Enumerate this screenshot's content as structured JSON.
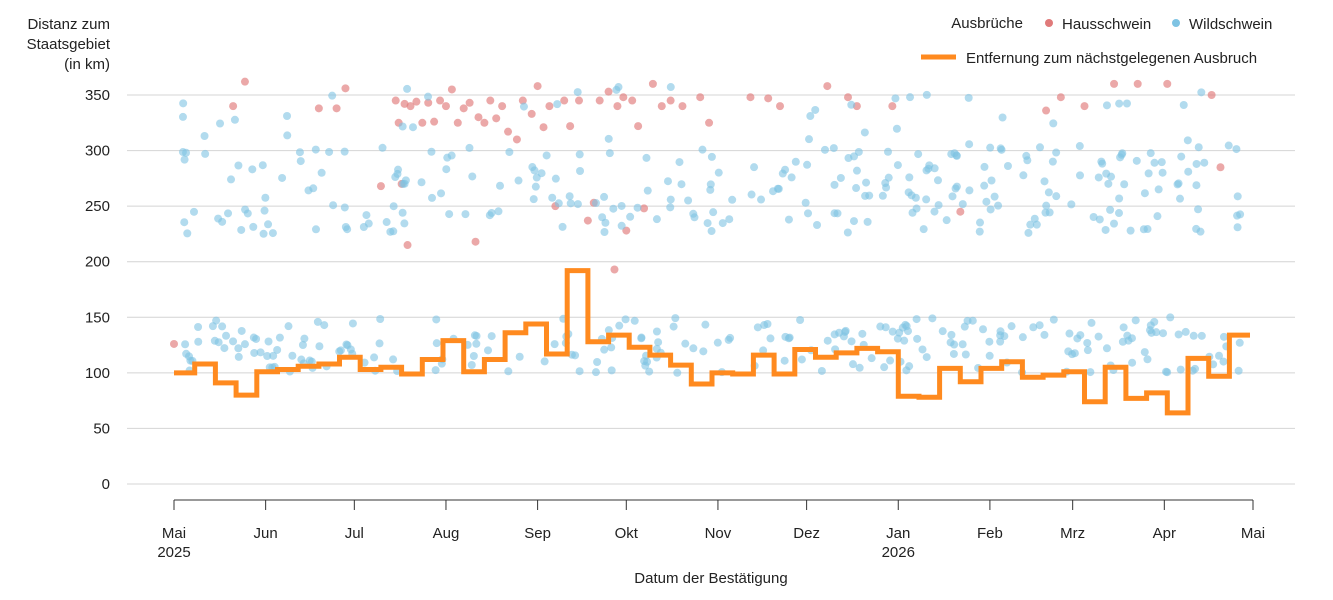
{
  "chart_data": {
    "type": "scatter",
    "ylabel": [
      "Distanz zum",
      "Staatsgebiet",
      "(in km)"
    ],
    "xlabel": "Datum der Bestätigung",
    "ylim": [
      0,
      350
    ],
    "y_ticks": [
      0,
      50,
      100,
      150,
      200,
      250,
      300,
      350
    ],
    "x_ticks": [
      {
        "date": "2025-05-01",
        "label": "Mai",
        "year": "2025"
      },
      {
        "date": "2025-06-01",
        "label": "Jun",
        "year": ""
      },
      {
        "date": "2025-07-01",
        "label": "Jul",
        "year": ""
      },
      {
        "date": "2025-08-01",
        "label": "Aug",
        "year": ""
      },
      {
        "date": "2025-09-01",
        "label": "Sep",
        "year": ""
      },
      {
        "date": "2025-10-01",
        "label": "Okt",
        "year": ""
      },
      {
        "date": "2025-11-01",
        "label": "Nov",
        "year": ""
      },
      {
        "date": "2025-12-01",
        "label": "Dez",
        "year": ""
      },
      {
        "date": "2026-01-01",
        "label": "Jan",
        "year": "2026"
      },
      {
        "date": "2026-02-01",
        "label": "Feb",
        "year": ""
      },
      {
        "date": "2026-03-01",
        "label": "Mrz",
        "year": ""
      },
      {
        "date": "2026-04-01",
        "label": "Apr",
        "year": ""
      },
      {
        "date": "2026-05-01",
        "label": "Mai",
        "year": ""
      }
    ],
    "grid": "horizontal",
    "legend": {
      "placement": "top-right",
      "title": "Ausbrüche",
      "scatter_items": [
        {
          "name": "Hausschwein",
          "color": "#e07a7a"
        },
        {
          "name": "Wildschwein",
          "color": "#7ec3e3"
        }
      ],
      "line_item": {
        "name": "Entfernung zum nächstgelegenen Ausbruch",
        "color": "#ff8a1f"
      }
    },
    "series": [
      {
        "name": "Hausschwein",
        "type": "scatter",
        "color": "#e07a7a",
        "points": [
          [
            "2025-05-01",
            126
          ],
          [
            "2025-05-21",
            340
          ],
          [
            "2025-05-25",
            362
          ],
          [
            "2025-06-19",
            338
          ],
          [
            "2025-06-25",
            338
          ],
          [
            "2025-06-28",
            356
          ],
          [
            "2025-07-10",
            268
          ],
          [
            "2025-07-15",
            345
          ],
          [
            "2025-07-16",
            325
          ],
          [
            "2025-07-17",
            270
          ],
          [
            "2025-07-18",
            342
          ],
          [
            "2025-07-19",
            215
          ],
          [
            "2025-07-20",
            340
          ],
          [
            "2025-07-22",
            344
          ],
          [
            "2025-07-24",
            325
          ],
          [
            "2025-07-26",
            343
          ],
          [
            "2025-07-28",
            326
          ],
          [
            "2025-07-30",
            345
          ],
          [
            "2025-08-01",
            340
          ],
          [
            "2025-08-03",
            355
          ],
          [
            "2025-08-05",
            325
          ],
          [
            "2025-08-07",
            338
          ],
          [
            "2025-08-09",
            343
          ],
          [
            "2025-08-11",
            218
          ],
          [
            "2025-08-12",
            330
          ],
          [
            "2025-08-14",
            325
          ],
          [
            "2025-08-16",
            345
          ],
          [
            "2025-08-18",
            329
          ],
          [
            "2025-08-20",
            340
          ],
          [
            "2025-08-22",
            317
          ],
          [
            "2025-08-25",
            310
          ],
          [
            "2025-08-27",
            345
          ],
          [
            "2025-08-30",
            333
          ],
          [
            "2025-09-01",
            358
          ],
          [
            "2025-09-03",
            321
          ],
          [
            "2025-09-05",
            340
          ],
          [
            "2025-09-07",
            250
          ],
          [
            "2025-09-10",
            345
          ],
          [
            "2025-09-12",
            322
          ],
          [
            "2025-09-15",
            345
          ],
          [
            "2025-09-18",
            237
          ],
          [
            "2025-09-20",
            253
          ],
          [
            "2025-09-22",
            345
          ],
          [
            "2025-09-25",
            353
          ],
          [
            "2025-09-27",
            193
          ],
          [
            "2025-09-28",
            340
          ],
          [
            "2025-09-30",
            348
          ],
          [
            "2025-10-01",
            228
          ],
          [
            "2025-10-03",
            345
          ],
          [
            "2025-10-05",
            322
          ],
          [
            "2025-10-07",
            248
          ],
          [
            "2025-10-10",
            360
          ],
          [
            "2025-10-13",
            340
          ],
          [
            "2025-10-16",
            345
          ],
          [
            "2025-10-20",
            340
          ],
          [
            "2025-10-26",
            348
          ],
          [
            "2025-10-29",
            325
          ],
          [
            "2025-11-12",
            348
          ],
          [
            "2025-11-18",
            347
          ],
          [
            "2025-11-22",
            340
          ],
          [
            "2025-12-08",
            358
          ],
          [
            "2025-12-15",
            348
          ],
          [
            "2025-12-18",
            340
          ],
          [
            "2025-12-30",
            340
          ],
          [
            "2026-01-22",
            245
          ],
          [
            "2026-02-20",
            336
          ],
          [
            "2026-02-25",
            348
          ],
          [
            "2026-03-05",
            340
          ],
          [
            "2026-03-15",
            360
          ],
          [
            "2026-03-23",
            360
          ],
          [
            "2026-04-02",
            360
          ],
          [
            "2026-04-17",
            350
          ],
          [
            "2026-04-20",
            285
          ]
        ]
      },
      {
        "name": "Wildschwein",
        "type": "scatter",
        "color": "#7ec3e3",
        "clusters": [
          {
            "y": [
              225,
              305
            ],
            "count": 260
          },
          {
            "y": [
              100,
              150
            ],
            "count": 240
          },
          {
            "y": [
              300,
              358
            ],
            "count": 40
          }
        ]
      },
      {
        "name": "Entfernung zum nächstgelegenen Ausbruch",
        "type": "step",
        "color": "#ff8a1f",
        "points": [
          [
            "2025-05-01",
            100
          ],
          [
            "2025-05-08",
            100
          ],
          [
            "2025-05-08",
            108
          ],
          [
            "2025-05-15",
            108
          ],
          [
            "2025-05-15",
            91
          ],
          [
            "2025-05-22",
            91
          ],
          [
            "2025-05-22",
            80
          ],
          [
            "2025-05-29",
            80
          ],
          [
            "2025-05-29",
            101
          ],
          [
            "2025-06-05",
            101
          ],
          [
            "2025-06-05",
            103
          ],
          [
            "2025-06-12",
            103
          ],
          [
            "2025-06-12",
            106
          ],
          [
            "2025-06-19",
            106
          ],
          [
            "2025-06-19",
            108
          ],
          [
            "2025-06-26",
            108
          ],
          [
            "2025-06-26",
            114
          ],
          [
            "2025-07-03",
            114
          ],
          [
            "2025-07-03",
            103
          ],
          [
            "2025-07-10",
            103
          ],
          [
            "2025-07-10",
            105
          ],
          [
            "2025-07-17",
            105
          ],
          [
            "2025-07-17",
            99
          ],
          [
            "2025-07-24",
            99
          ],
          [
            "2025-07-24",
            112
          ],
          [
            "2025-07-31",
            112
          ],
          [
            "2025-07-31",
            129
          ],
          [
            "2025-08-07",
            129
          ],
          [
            "2025-08-07",
            101
          ],
          [
            "2025-08-14",
            101
          ],
          [
            "2025-08-14",
            112
          ],
          [
            "2025-08-21",
            112
          ],
          [
            "2025-08-21",
            136
          ],
          [
            "2025-08-28",
            136
          ],
          [
            "2025-08-28",
            144
          ],
          [
            "2025-09-04",
            144
          ],
          [
            "2025-09-04",
            117
          ],
          [
            "2025-09-11",
            117
          ],
          [
            "2025-09-11",
            192
          ],
          [
            "2025-09-18",
            192
          ],
          [
            "2025-09-18",
            128
          ],
          [
            "2025-09-25",
            128
          ],
          [
            "2025-09-25",
            134
          ],
          [
            "2025-10-02",
            134
          ],
          [
            "2025-10-02",
            123
          ],
          [
            "2025-10-09",
            123
          ],
          [
            "2025-10-09",
            116
          ],
          [
            "2025-10-16",
            116
          ],
          [
            "2025-10-16",
            107
          ],
          [
            "2025-10-23",
            107
          ],
          [
            "2025-10-23",
            90
          ],
          [
            "2025-10-30",
            90
          ],
          [
            "2025-10-30",
            100
          ],
          [
            "2025-11-06",
            100
          ],
          [
            "2025-11-06",
            99
          ],
          [
            "2025-11-13",
            99
          ],
          [
            "2025-11-13",
            116
          ],
          [
            "2025-11-20",
            116
          ],
          [
            "2025-11-20",
            99
          ],
          [
            "2025-11-27",
            99
          ],
          [
            "2025-11-27",
            121
          ],
          [
            "2025-12-04",
            121
          ],
          [
            "2025-12-04",
            114
          ],
          [
            "2025-12-11",
            114
          ],
          [
            "2025-12-11",
            118
          ],
          [
            "2025-12-18",
            118
          ],
          [
            "2025-12-18",
            122
          ],
          [
            "2025-12-25",
            122
          ],
          [
            "2025-12-25",
            119
          ],
          [
            "2026-01-01",
            119
          ],
          [
            "2026-01-01",
            79
          ],
          [
            "2026-01-08",
            79
          ],
          [
            "2026-01-08",
            78
          ],
          [
            "2026-01-15",
            78
          ],
          [
            "2026-01-15",
            104
          ],
          [
            "2026-01-22",
            104
          ],
          [
            "2026-01-22",
            92
          ],
          [
            "2026-01-29",
            92
          ],
          [
            "2026-01-29",
            104
          ],
          [
            "2026-02-05",
            104
          ],
          [
            "2026-02-05",
            110
          ],
          [
            "2026-02-12",
            110
          ],
          [
            "2026-02-12",
            96
          ],
          [
            "2026-02-19",
            96
          ],
          [
            "2026-02-19",
            98
          ],
          [
            "2026-02-26",
            98
          ],
          [
            "2026-02-26",
            101
          ],
          [
            "2026-03-05",
            101
          ],
          [
            "2026-03-05",
            74
          ],
          [
            "2026-03-12",
            74
          ],
          [
            "2026-03-12",
            105
          ],
          [
            "2026-03-19",
            105
          ],
          [
            "2026-03-19",
            77
          ],
          [
            "2026-03-26",
            77
          ],
          [
            "2026-03-26",
            82
          ],
          [
            "2026-04-02",
            82
          ],
          [
            "2026-04-02",
            64
          ],
          [
            "2026-04-09",
            64
          ],
          [
            "2026-04-09",
            113
          ],
          [
            "2026-04-16",
            113
          ],
          [
            "2026-04-16",
            97
          ],
          [
            "2026-04-23",
            97
          ],
          [
            "2026-04-23",
            134
          ],
          [
            "2026-04-30",
            134
          ]
        ]
      }
    ]
  }
}
